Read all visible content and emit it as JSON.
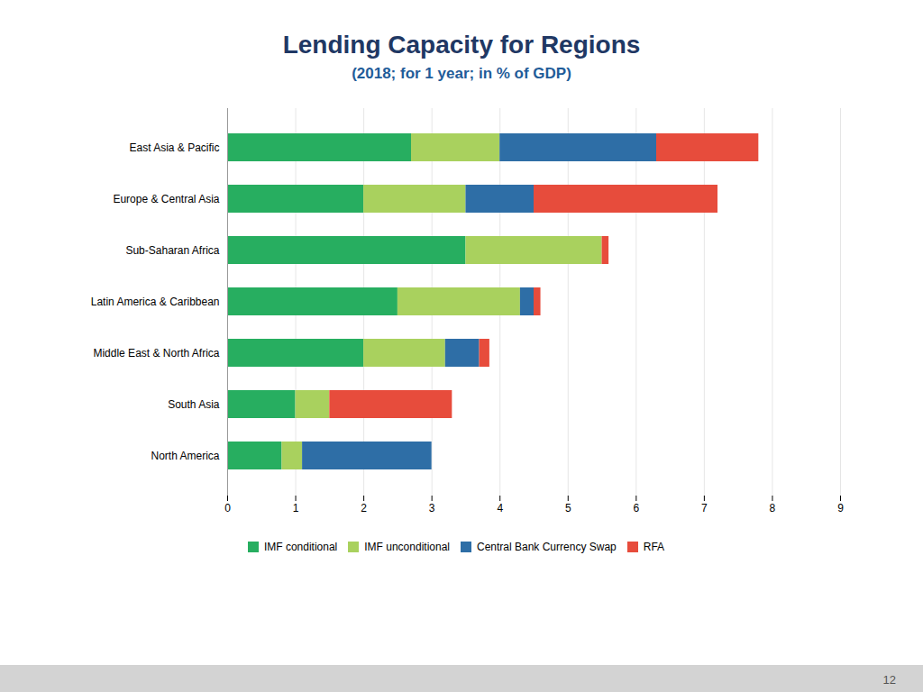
{
  "chart_data": {
    "type": "bar",
    "orientation": "horizontal",
    "stacked": true,
    "title": "Lending Capacity for Regions",
    "subtitle": "(2018; for 1 year;  in % of GDP)",
    "categories": [
      "East Asia & Pacific",
      "Europe & Central Asia",
      "Sub-Saharan Africa",
      "Latin America & Caribbean",
      "Middle East & North Africa",
      "South Asia",
      "North America"
    ],
    "series": [
      {
        "name": "IMF conditional",
        "color": "#27AE60",
        "values": [
          2.7,
          2.0,
          3.5,
          2.5,
          2.0,
          1.0,
          0.8
        ]
      },
      {
        "name": "IMF unconditional",
        "color": "#A9D15E",
        "values": [
          1.3,
          1.5,
          2.0,
          1.8,
          1.2,
          0.5,
          0.3
        ]
      },
      {
        "name": "Central Bank Currency Swap",
        "color": "#2E6EA6",
        "values": [
          2.3,
          1.0,
          0.0,
          0.2,
          0.5,
          0.0,
          1.9
        ]
      },
      {
        "name": "RFA",
        "color": "#E74C3C",
        "values": [
          1.5,
          2.7,
          0.1,
          0.1,
          0.15,
          1.8,
          0.0
        ]
      }
    ],
    "xlim": [
      0,
      9
    ],
    "xticks": [
      0,
      1,
      2,
      3,
      4,
      5,
      6,
      7,
      8,
      9
    ],
    "grid": true,
    "legend": "bottom",
    "annotations": [
      "12"
    ]
  }
}
